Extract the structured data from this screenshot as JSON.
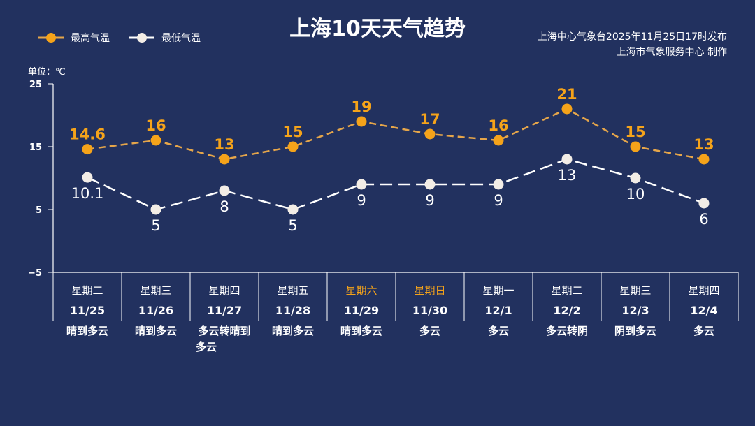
{
  "title": "上海10天天气趋势",
  "source_line1": "上海中心气象台2025年11月25日17时发布",
  "source_line2": "上海市气象服务中心  制作",
  "unit": "单位：℃",
  "colors": {
    "high": "#f5a31a",
    "low": "#f3ede6",
    "weekend": "#f5a31a",
    "background": "#22315f"
  },
  "chart_data": {
    "type": "line",
    "title": "上海10天天气趋势",
    "ylim": [
      -5,
      25
    ],
    "yticks": [
      25,
      15,
      5,
      -5
    ],
    "legend_placement": "top-left",
    "weekdays": [
      "星期二",
      "星期三",
      "星期四",
      "星期五",
      "星期六",
      "星期日",
      "星期一",
      "星期二",
      "星期三",
      "星期四"
    ],
    "categories": [
      "11/25",
      "11/26",
      "11/27",
      "11/28",
      "11/29",
      "11/30",
      "12/1",
      "12/2",
      "12/3",
      "12/4"
    ],
    "weather": [
      "晴到多云",
      "晴到多云",
      "多云转晴到多云",
      "晴到多云",
      "晴到多云",
      "多云",
      "多云",
      "多云转阴",
      "阴到多云",
      "多云"
    ],
    "weekend": [
      false,
      false,
      false,
      false,
      true,
      true,
      false,
      false,
      false,
      false
    ],
    "series": [
      {
        "name": "最高气温",
        "values": [
          14.6,
          16,
          13,
          15,
          19,
          17,
          16,
          21,
          15,
          13
        ]
      },
      {
        "name": "最低气温",
        "values": [
          10.1,
          5,
          8,
          5,
          9,
          9,
          9,
          13,
          10,
          6
        ]
      }
    ]
  }
}
